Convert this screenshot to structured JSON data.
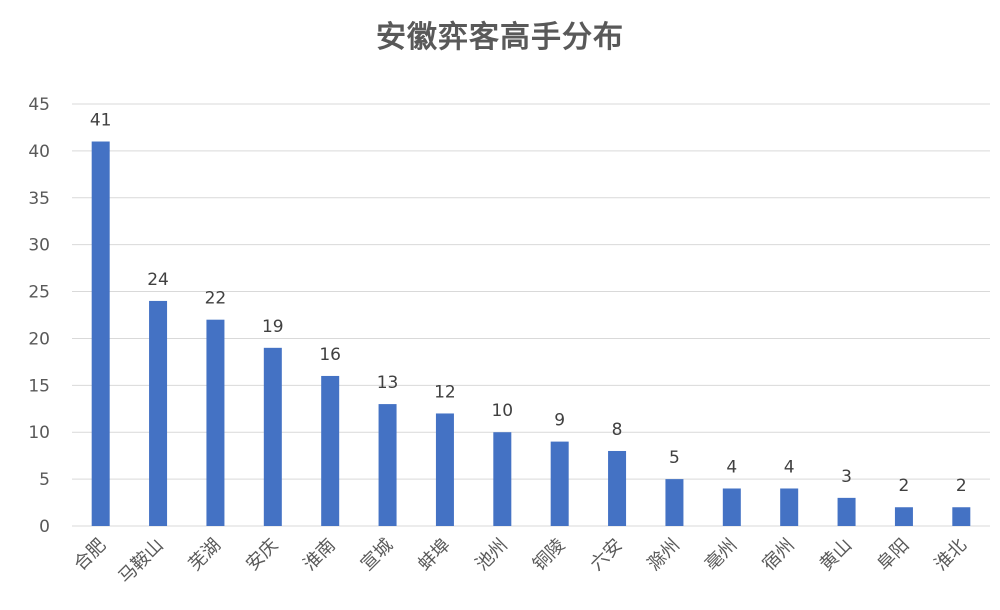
{
  "chart_data": {
    "type": "bar",
    "title": "安徽弈客高手分布",
    "categories": [
      "合肥",
      "马鞍山",
      "芜湖",
      "安庆",
      "淮南",
      "宣城",
      "蚌埠",
      "池州",
      "铜陵",
      "六安",
      "滁州",
      "亳州",
      "宿州",
      "黄山",
      "阜阳",
      "淮北"
    ],
    "values": [
      41,
      24,
      22,
      19,
      16,
      13,
      12,
      10,
      9,
      8,
      5,
      4,
      4,
      3,
      2,
      2
    ],
    "ylim": [
      0,
      45
    ],
    "yticks": [
      "0",
      "5",
      "10",
      "15",
      "20",
      "25",
      "30",
      "35",
      "40",
      "45"
    ],
    "grid": true,
    "data_labels": true,
    "bar_color": "#4472C4",
    "grid_color": "#D9D9D9"
  }
}
